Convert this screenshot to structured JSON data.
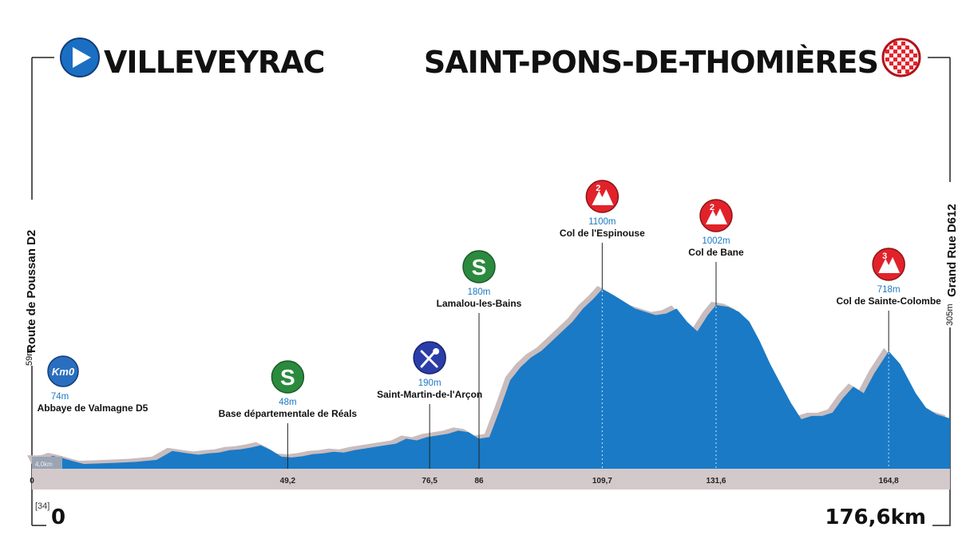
{
  "header": {
    "start_city": "VILLEVEYRAC",
    "finish_city": "SAINT-PONS-DE-THOMIÈRES"
  },
  "sides": {
    "start_road": "Route de Poussan D2",
    "start_alt": "59m",
    "finish_road": "Grand Rue D612",
    "finish_alt": "305m"
  },
  "footer": {
    "start_km": "0",
    "finish_km": "176,6km",
    "neutral_badge": "[34]",
    "neutral_distance": "4,0km"
  },
  "colors": {
    "profile_fill": "#1a7ac6",
    "shadow_fill": "#c9bcbd",
    "axis_band": "#d4c9ca",
    "climb_red": "#e2222b",
    "sprint_green": "#2b8a3e",
    "feed_blue": "#2b3ea8",
    "km0_blue": "#2a6fbf"
  },
  "chart_data": {
    "type": "area",
    "title": "",
    "xlabel": "",
    "ylabel": "",
    "xlim": [
      0,
      176.6
    ],
    "ylim": [
      0,
      1200
    ],
    "grid": false,
    "profile": {
      "x": [
        0,
        1,
        2,
        3,
        4,
        6,
        8,
        10,
        13,
        16,
        20,
        24,
        27,
        30,
        32,
        34,
        36,
        38,
        40,
        42,
        44,
        46,
        48,
        50,
        52,
        54,
        56,
        58,
        60,
        62,
        64,
        66,
        68,
        70,
        72,
        74,
        76,
        78,
        80,
        82,
        84,
        86,
        88,
        90,
        92,
        94,
        96,
        98,
        100,
        102,
        104,
        106,
        108,
        109.7,
        112,
        114,
        116,
        118,
        120,
        122,
        124,
        126,
        128,
        130,
        131.6,
        134,
        136,
        138,
        140,
        142,
        144,
        146,
        148,
        150,
        152,
        154,
        156,
        158,
        160,
        162,
        164.8,
        167,
        170,
        172,
        174,
        176.6
      ],
      "y": [
        59,
        58,
        58,
        62,
        74,
        60,
        42,
        25,
        28,
        32,
        38,
        50,
        105,
        90,
        82,
        90,
        95,
        110,
        115,
        125,
        140,
        110,
        70,
        65,
        72,
        85,
        90,
        100,
        95,
        110,
        120,
        130,
        140,
        150,
        180,
        170,
        190,
        200,
        210,
        230,
        220,
        180,
        190,
        360,
        540,
        620,
        680,
        720,
        780,
        840,
        900,
        980,
        1040,
        1100,
        1060,
        1020,
        980,
        960,
        940,
        950,
        980,
        900,
        840,
        940,
        1002,
        990,
        960,
        900,
        780,
        640,
        520,
        400,
        300,
        320,
        320,
        340,
        430,
        500,
        460,
        580,
        718,
        640,
        460,
        370,
        330,
        305
      ]
    },
    "waypoints": [
      {
        "km": 0,
        "km_label": "0",
        "name": "Abbaye de Valmagne D5",
        "alt_label": "74m",
        "type": "start",
        "icon_label": "Km0"
      },
      {
        "km": 49.2,
        "km_label": "49,2",
        "name": "Base départementale de Réals",
        "alt_label": "48m",
        "type": "sprint",
        "icon_label": "S"
      },
      {
        "km": 76.5,
        "km_label": "76,5",
        "name": "Saint-Martin-de-l'Arçon",
        "alt_label": "190m",
        "type": "feed",
        "icon_label": ""
      },
      {
        "km": 86,
        "km_label": "86",
        "name": "Lamalou-les-Bains",
        "alt_label": "180m",
        "type": "sprint",
        "icon_label": "S"
      },
      {
        "km": 109.7,
        "km_label": "109,7",
        "name": "Col de l'Espinouse",
        "alt_label": "1100m",
        "type": "climb",
        "icon_label": "2"
      },
      {
        "km": 131.6,
        "km_label": "131,6",
        "name": "Col de Bane",
        "alt_label": "1002m",
        "type": "climb",
        "icon_label": "2"
      },
      {
        "km": 164.8,
        "km_label": "164,8",
        "name": "Col de Sainte-Colombe",
        "alt_label": "718m",
        "type": "climb",
        "icon_label": "3"
      }
    ]
  }
}
